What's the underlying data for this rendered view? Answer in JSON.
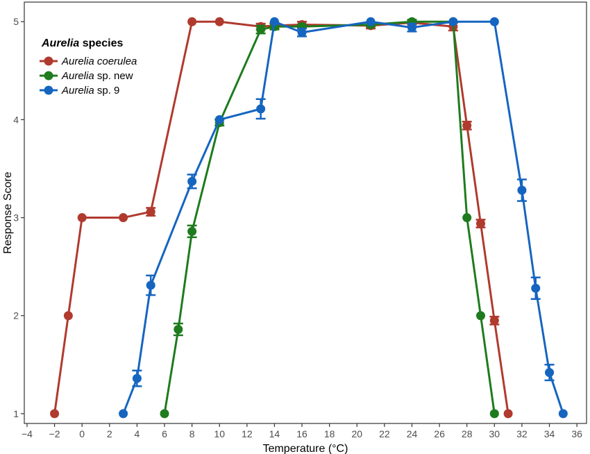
{
  "chart_data": {
    "type": "line",
    "xlabel": "Temperature (°C)",
    "ylabel": "Response Score",
    "xlim": [
      -4.2,
      36.7
    ],
    "ylim": [
      0.9,
      5.2
    ],
    "xticks": [
      -4,
      -2,
      0,
      2,
      4,
      6,
      8,
      10,
      12,
      14,
      16,
      18,
      20,
      22,
      24,
      26,
      28,
      30,
      32,
      34,
      36
    ],
    "yticks": [
      1,
      2,
      3,
      4,
      5
    ],
    "grid": false,
    "legend": {
      "title_italic": "Aurelia",
      "title_rest": " species",
      "placement": "top-left",
      "entries": [
        {
          "italic": "Aurelia coerulea",
          "rest": "",
          "color": "#b03a2e"
        },
        {
          "italic": "Aurelia",
          "rest": " sp. new",
          "color": "#1e7b1e"
        },
        {
          "italic": "Aurelia",
          "rest": " sp. 9",
          "color": "#1565c0"
        }
      ]
    },
    "series": [
      {
        "name": "Aurelia coerulea",
        "color": "#b03a2e",
        "x": [
          -2,
          -1,
          0,
          3,
          5,
          8,
          10,
          13,
          14,
          16,
          21,
          24,
          27,
          28,
          29,
          30,
          31
        ],
        "y": [
          1,
          2,
          3,
          3,
          3.06,
          5,
          5,
          4.95,
          4.96,
          4.97,
          4.96,
          4.99,
          4.95,
          3.94,
          2.94,
          1.95,
          1
        ],
        "err": [
          0,
          0,
          0,
          0,
          0.04,
          0,
          0,
          0.03,
          0.03,
          0.03,
          0.03,
          0.02,
          0.04,
          0.04,
          0.04,
          0.04,
          0
        ]
      },
      {
        "name": "Aurelia sp. new",
        "color": "#1e7b1e",
        "x": [
          6,
          7,
          8,
          10,
          13,
          14,
          16,
          21,
          24,
          27,
          28,
          29,
          30
        ],
        "y": [
          1,
          1.86,
          2.86,
          3.97,
          4.92,
          4.95,
          4.95,
          4.97,
          5,
          5,
          3,
          2,
          1
        ],
        "err": [
          0,
          0.06,
          0.06,
          0.03,
          0.04,
          0.03,
          0.02,
          0.02,
          0.02,
          0,
          0,
          0,
          0
        ]
      },
      {
        "name": "Aurelia sp. 9",
        "color": "#1565c0",
        "x": [
          3,
          4,
          5,
          8,
          10,
          13,
          14,
          16,
          21,
          24,
          27,
          30,
          32,
          33,
          34,
          35
        ],
        "y": [
          1,
          1.36,
          2.31,
          3.37,
          4,
          4.11,
          5,
          4.89,
          5,
          4.94,
          5,
          5,
          3.28,
          2.28,
          1.42,
          1
        ],
        "err": [
          0,
          0.08,
          0.1,
          0.07,
          0,
          0.1,
          0,
          0.04,
          0,
          0.04,
          0,
          0,
          0.11,
          0.11,
          0.08,
          0
        ]
      }
    ]
  }
}
